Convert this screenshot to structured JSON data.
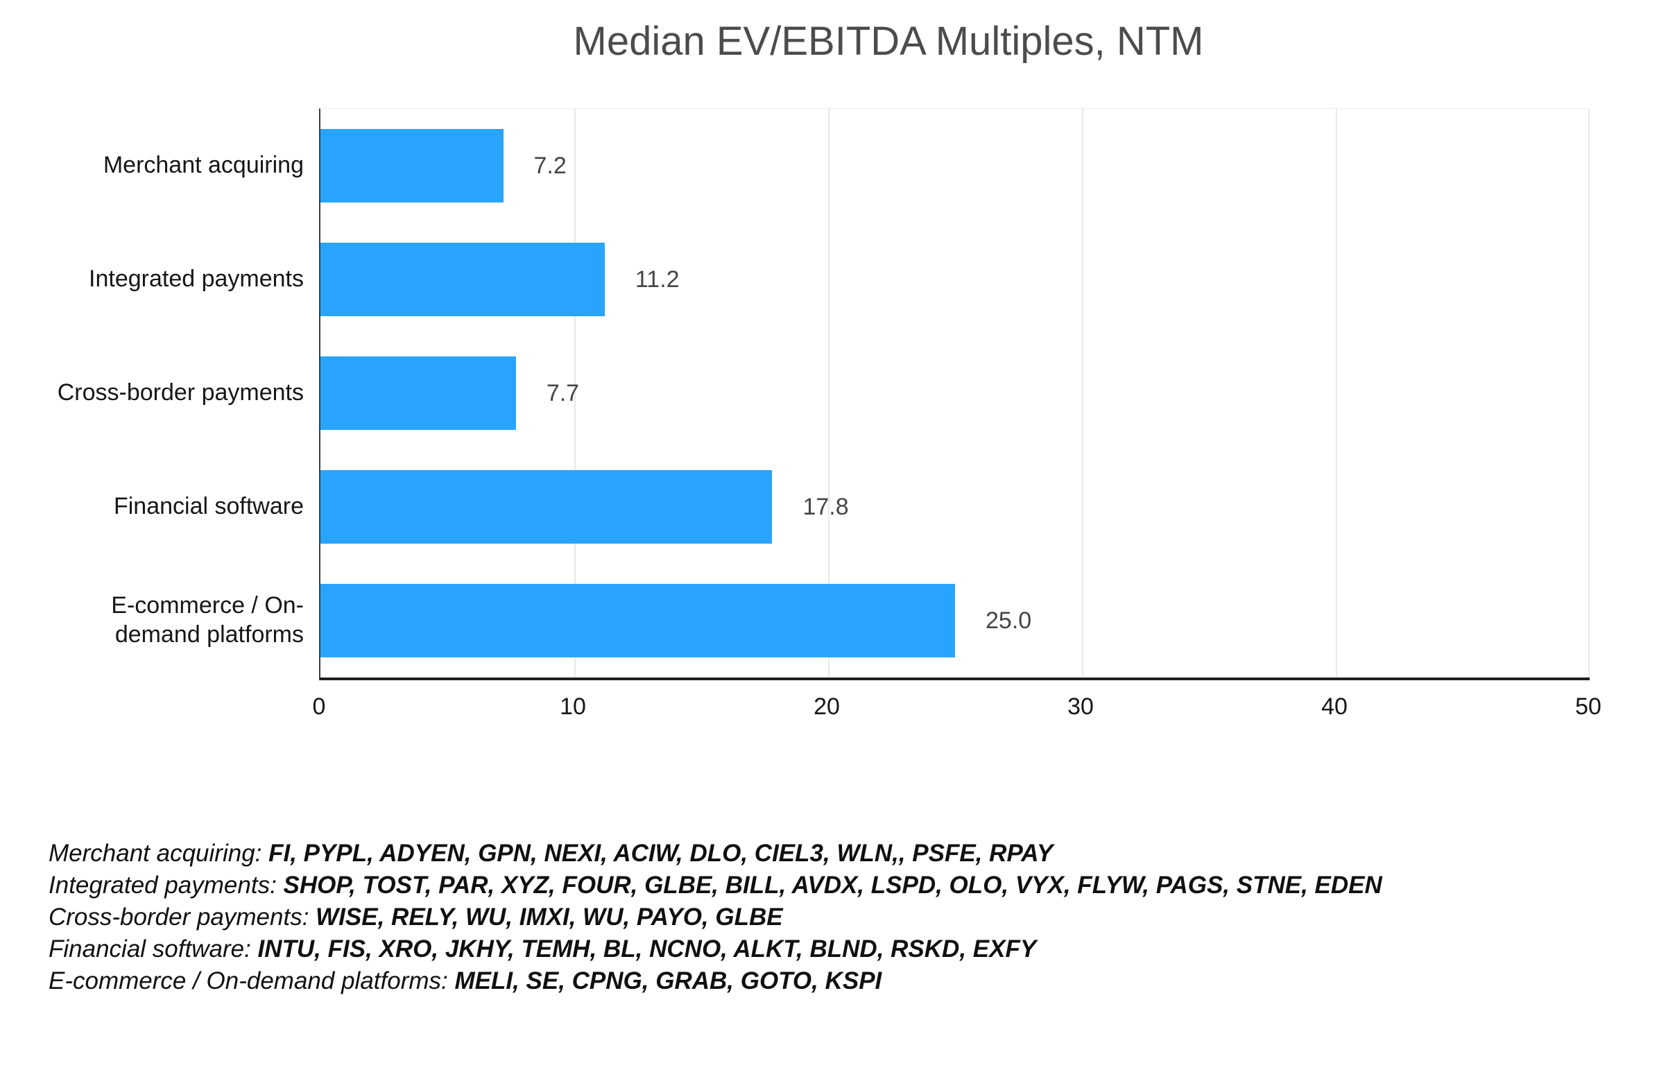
{
  "chart_data": {
    "type": "bar",
    "orientation": "horizontal",
    "title": "Median EV/EBITDA Multiples, NTM",
    "categories": [
      "Merchant acquiring",
      "Integrated payments",
      "Cross-border payments",
      "Financial software",
      "E-commerce / On-demand platforms"
    ],
    "categories_display": [
      "Merchant acquiring",
      "Integrated payments",
      "Cross-border payments",
      "Financial software",
      "E-commerce / On-\ndemand platforms"
    ],
    "values": [
      7.2,
      11.2,
      7.7,
      17.8,
      25.0
    ],
    "value_labels": [
      "7.2",
      "11.2",
      "7.7",
      "17.8",
      "25.0"
    ],
    "xlabel": "",
    "ylabel": "",
    "xlim": [
      0,
      50
    ],
    "x_ticks": [
      "0",
      "10",
      "20",
      "30",
      "40",
      "50"
    ],
    "grid": "vertical-gridlines-at-10s",
    "legend": "none",
    "bar_color": "#28a4fc"
  },
  "footnotes": [
    {
      "category": "Merchant acquiring: ",
      "tickers": "FI, PYPL, ADYEN, GPN, NEXI, ACIW, DLO, CIEL3, WLN,, PSFE, RPAY"
    },
    {
      "category": "Integrated payments: ",
      "tickers": "SHOP, TOST, PAR, XYZ, FOUR, GLBE, BILL, AVDX, LSPD, OLO, VYX, FLYW, PAGS, STNE, EDEN"
    },
    {
      "category": "Cross-border payments: ",
      "tickers": "WISE, RELY, WU, IMXI, WU, PAYO, GLBE"
    },
    {
      "category": "Financial software: ",
      "tickers": "INTU, FIS, XRO, JKHY, TEMH, BL, NCNO, ALKT, BLND, RSKD, EXFY"
    },
    {
      "category": "E-commerce / On-demand platforms: ",
      "tickers": "MELI, SE, CPNG, GRAB, GOTO, KSPI"
    }
  ],
  "colors": {
    "bar": "#28a4fc",
    "title_text": "#4c4c4c",
    "value_label": "#454545",
    "axis_label": "#161616",
    "gridline": "#e8e8e8",
    "axis_line": "#1f1f1f",
    "background": "#ffffff"
  }
}
